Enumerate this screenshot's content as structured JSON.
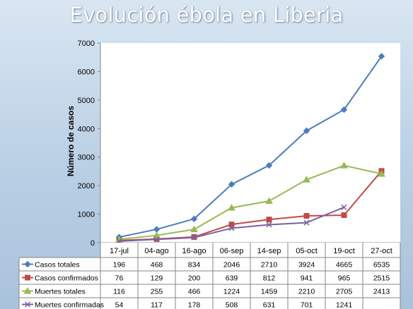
{
  "title": "Evolución ébola en Liberia",
  "chart_data": {
    "type": "line",
    "ylabel": "Número de casos",
    "ylim": [
      0,
      7000
    ],
    "yticks": [
      0,
      1000,
      2000,
      3000,
      4000,
      5000,
      6000,
      7000
    ],
    "grid": false,
    "categories": [
      "17-jul",
      "04-ago",
      "16-ago",
      "06-sep",
      "14-sep",
      "05-oct",
      "19-oct",
      "27-oct"
    ],
    "series": [
      {
        "name": "Casos totales",
        "color": "#4a7ebb",
        "marker": "diamond",
        "values": [
          196,
          468,
          834,
          2046,
          2710,
          3924,
          4665,
          6535
        ]
      },
      {
        "name": "Casos confirmados",
        "color": "#be4b48",
        "marker": "square",
        "values": [
          76,
          129,
          200,
          639,
          812,
          941,
          965,
          2515
        ]
      },
      {
        "name": "Muertes totales",
        "color": "#98b954",
        "marker": "triangle",
        "values": [
          116,
          255,
          466,
          1224,
          1459,
          2210,
          2705,
          2413
        ]
      },
      {
        "name": "Muertes confirmadas",
        "color": "#7d60a0",
        "marker": "x",
        "values": [
          54,
          117,
          178,
          508,
          631,
          701,
          1241,
          null
        ]
      }
    ],
    "legend": "table"
  }
}
